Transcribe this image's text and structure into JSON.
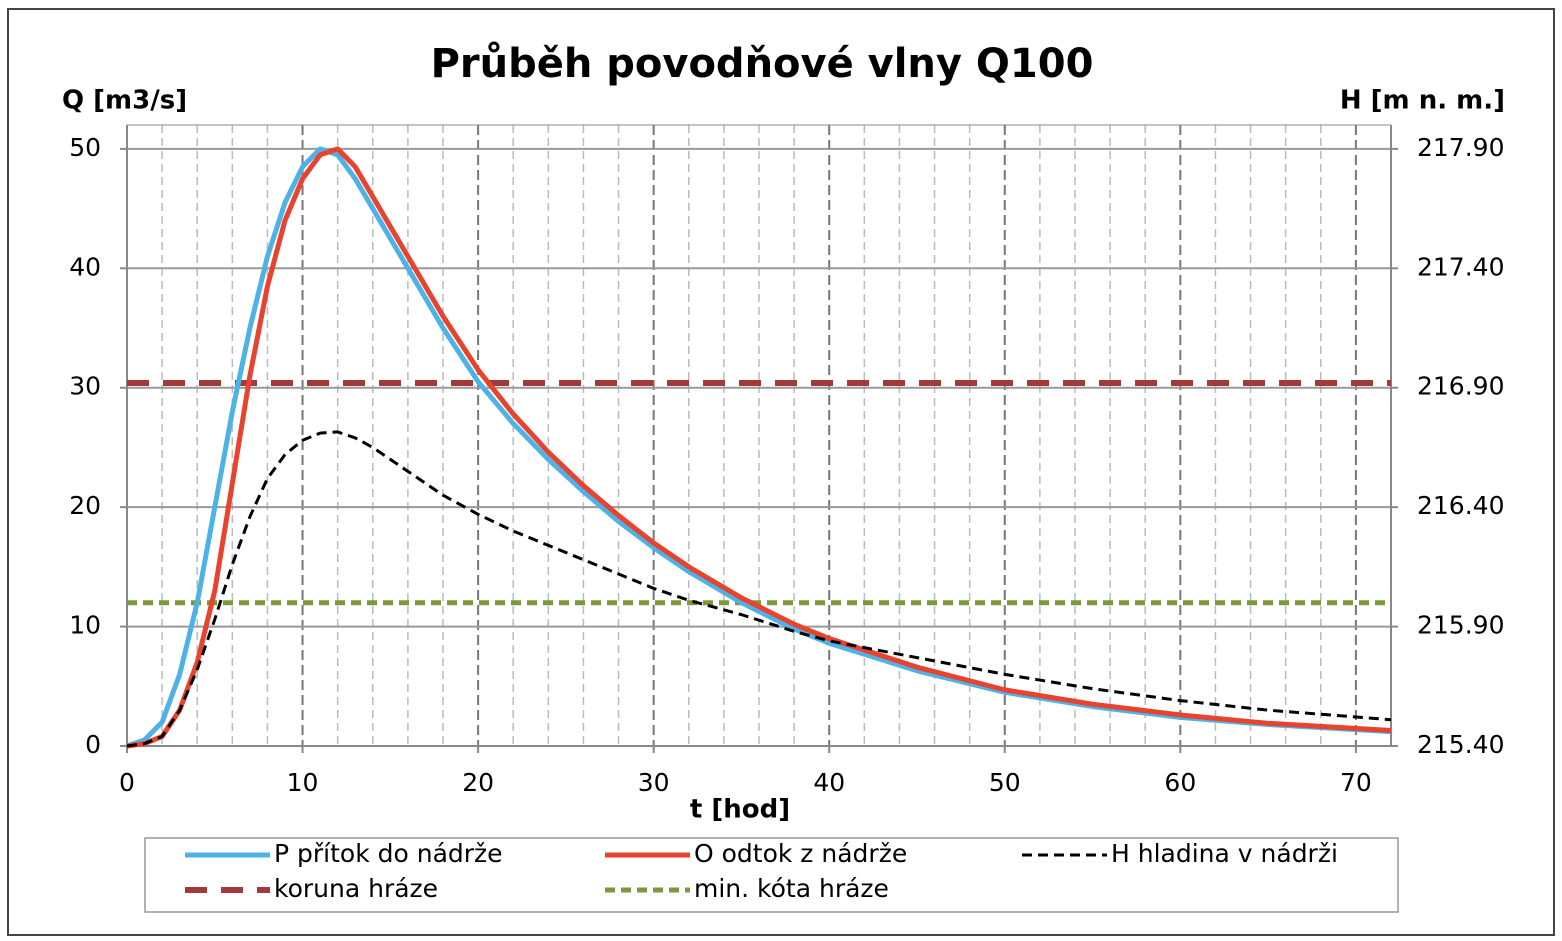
{
  "chart_data": {
    "type": "line",
    "title": "Průběh povodňové vlny Q100",
    "xlabel": "t [hod]",
    "ylabel": "Q [m3/s]",
    "y2label": "H [m n. m.]",
    "x": [
      0,
      1,
      2,
      3,
      4,
      5,
      6,
      7,
      8,
      9,
      10,
      11,
      12,
      13,
      14,
      16,
      18,
      20,
      22,
      24,
      26,
      28,
      30,
      32,
      35,
      38,
      40,
      45,
      50,
      55,
      60,
      65,
      72
    ],
    "xlim": [
      0,
      72
    ],
    "xticks": [
      0,
      10,
      20,
      30,
      40,
      50,
      60,
      70
    ],
    "xticks_minor": [
      2,
      4,
      6,
      8,
      12,
      14,
      16,
      18,
      22,
      24,
      26,
      28,
      32,
      34,
      36,
      38,
      42,
      44,
      46,
      48,
      52,
      54,
      56,
      58,
      62,
      64,
      66,
      68
    ],
    "ylim": [
      0,
      52
    ],
    "yticks": [
      0,
      10,
      20,
      30,
      40,
      50
    ],
    "y2lim": [
      215.4,
      218.0
    ],
    "y2ticks": [
      {
        "value": 215.4,
        "label": "215.40"
      },
      {
        "value": 215.9,
        "label": "215.90"
      },
      {
        "value": 216.4,
        "label": "216.40"
      },
      {
        "value": 216.9,
        "label": "216.90"
      },
      {
        "value": 217.4,
        "label": "217.40"
      },
      {
        "value": 217.9,
        "label": "217.90"
      }
    ],
    "grid": true,
    "series": [
      {
        "name": "P přítok do nádrže",
        "color": "#4db3e6",
        "dash": "solid",
        "width": 5,
        "values": [
          0,
          0.5,
          2,
          6,
          12,
          20,
          28,
          35,
          41,
          45.5,
          48.5,
          50,
          49.5,
          47.5,
          45,
          40,
          35,
          30.5,
          27,
          24,
          21.3,
          18.8,
          16.6,
          14.6,
          12,
          9.8,
          8.6,
          6.3,
          4.5,
          3.3,
          2.4,
          1.8,
          1.2
        ]
      },
      {
        "name": "O odtok z nádrže",
        "color": "#e8432f",
        "dash": "solid",
        "width": 5,
        "values": [
          0,
          0.2,
          0.8,
          3,
          7,
          13,
          22,
          31,
          38.5,
          44,
          47.5,
          49.5,
          50,
          48.5,
          46,
          41,
          36,
          31.5,
          27.8,
          24.6,
          21.8,
          19.3,
          17,
          15,
          12.4,
          10.2,
          9,
          6.6,
          4.7,
          3.5,
          2.6,
          1.9,
          1.3
        ]
      },
      {
        "name": "H hladina v nádrži",
        "color": "#000000",
        "dash": "dashed",
        "width": 3,
        "axis": "y2",
        "values": [
          215.4,
          215.41,
          215.44,
          215.55,
          215.72,
          215.93,
          216.16,
          216.36,
          216.52,
          216.62,
          216.68,
          216.71,
          216.715,
          216.69,
          216.65,
          216.55,
          216.45,
          216.37,
          216.3,
          216.24,
          216.18,
          216.12,
          216.06,
          216.01,
          215.95,
          215.88,
          215.84,
          215.77,
          215.7,
          215.64,
          215.59,
          215.55,
          215.51
        ]
      },
      {
        "name": "koruna hráze",
        "color": "#a33a3a",
        "dash": "longdash",
        "width": 6,
        "axis": "y2",
        "x": [
          0,
          72
        ],
        "values": [
          216.92,
          216.92
        ]
      },
      {
        "name": "min. kóta hráze",
        "color": "#7a9a3a",
        "dash": "dashed",
        "width": 5,
        "axis": "y2",
        "x": [
          0,
          72
        ],
        "values": [
          216.0,
          216.0
        ]
      }
    ]
  }
}
